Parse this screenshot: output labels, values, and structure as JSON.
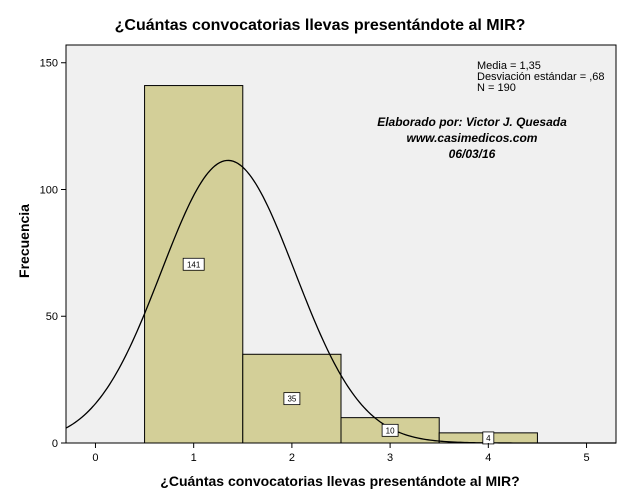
{
  "chart_data": {
    "type": "bar",
    "title": "¿Cuántas convocatorias llevas presentándote al MIR?",
    "xlabel": "¿Cuántas convocatorias llevas presentándote al MIR?",
    "ylabel": "Frecuencia",
    "categories": [
      1,
      2,
      3,
      4
    ],
    "values": [
      141,
      35,
      10,
      4
    ],
    "data_labels": [
      "141",
      "35",
      "10",
      "4"
    ],
    "bin_width": 1,
    "xlim": [
      -0.3,
      5.3
    ],
    "ylim": [
      0,
      157
    ],
    "xticks": [
      "0",
      "1",
      "2",
      "3",
      "4",
      "5"
    ],
    "yticks": [
      "0",
      "50",
      "100",
      "150"
    ],
    "normal_curve": {
      "mean": 1.35,
      "sd": 0.68,
      "n": 190
    },
    "stats": {
      "mean": "Media = 1,35",
      "sd": "Desviación estándar = ,68",
      "n": "N = 190"
    },
    "annotation": {
      "line1": "Elaborado por: Victor J. Quesada",
      "line2": "www.casimedicos.com",
      "line3": "06/03/16"
    },
    "colors": {
      "bar_fill": "#d3cf98",
      "plot_bg": "#f0f0f0",
      "curve": "#000000"
    },
    "grid": false,
    "legend": "none"
  }
}
